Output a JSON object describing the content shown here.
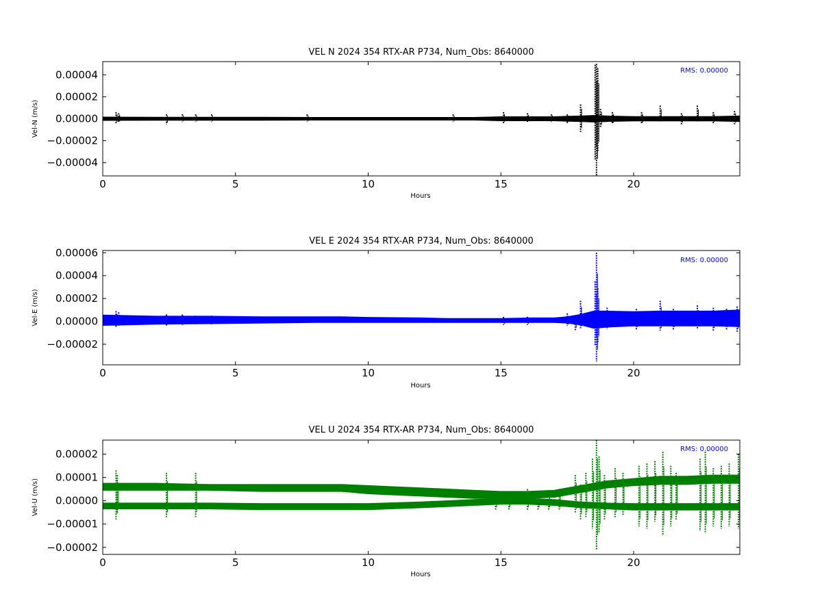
{
  "chart_data": [
    {
      "type": "line",
      "title": "VEL N 2024 354 RTX-AR  P734, Num_Obs: 8640000",
      "xlabel": "Hours",
      "ylabel": "Vel-N (m/s)",
      "xlim": [
        0,
        24
      ],
      "ylim": [
        -5.2e-05,
        5.2e-05
      ],
      "xticks": [
        0,
        5,
        10,
        15,
        20
      ],
      "xtick_labels": [
        "0",
        "5",
        "10",
        "15",
        "20"
      ],
      "yticks": [
        -4e-05,
        -2e-05,
        0,
        2e-05,
        4e-05
      ],
      "ytick_labels": [
        "−0.00004",
        "−0.00002",
        "0.00000",
        "0.00002",
        "0.00004"
      ],
      "rms_label": "RMS:  0.00000",
      "grid": false,
      "series": [
        {
          "color": "#000000",
          "band": {
            "x": [
              0,
              2,
              4,
              6,
              8,
              10,
              12,
              14,
              15,
              16,
              17,
              17.5,
              18,
              18.5,
              19,
              20,
              21,
              22,
              23,
              24
            ],
            "upper": [
              1.5e-06,
              1.4e-06,
              1.3e-06,
              1.3e-06,
              1.2e-06,
              1.2e-06,
              1.2e-06,
              1.2e-06,
              1.8e-06,
              1.8e-06,
              1.8e-06,
              2.2e-06,
              2.5e-06,
              3e-06,
              2.5e-06,
              2e-06,
              2e-06,
              2e-06,
              2e-06,
              2.5e-06
            ],
            "lower": [
              -1.5e-06,
              -1.4e-06,
              -1.3e-06,
              -1.3e-06,
              -1.2e-06,
              -1.2e-06,
              -1.2e-06,
              -1.2e-06,
              -1.8e-06,
              -1.8e-06,
              -1.8e-06,
              -2.2e-06,
              -2.5e-06,
              -3e-06,
              -2.5e-06,
              -2e-06,
              -2e-06,
              -2e-06,
              -2e-06,
              -2.5e-06
            ]
          },
          "spikes": [
            {
              "x": 0.5,
              "high": 6e-06,
              "low": -4e-06
            },
            {
              "x": 0.6,
              "high": 5e-06,
              "low": -3e-06
            },
            {
              "x": 2.4,
              "high": 4e-06,
              "low": -5e-06
            },
            {
              "x": 3.0,
              "high": 4e-06,
              "low": -3e-06
            },
            {
              "x": 3.5,
              "high": 4e-06,
              "low": -3e-06
            },
            {
              "x": 4.1,
              "high": 4e-06,
              "low": -3e-06
            },
            {
              "x": 7.7,
              "high": 4e-06,
              "low": -3e-06
            },
            {
              "x": 13.2,
              "high": 4e-06,
              "low": -3e-06
            },
            {
              "x": 15.1,
              "high": 6e-06,
              "low": -4e-06
            },
            {
              "x": 16.0,
              "high": 5e-06,
              "low": -3e-06
            },
            {
              "x": 16.9,
              "high": 4e-06,
              "low": -3e-06
            },
            {
              "x": 17.5,
              "high": 4e-06,
              "low": -4e-06
            },
            {
              "x": 18.0,
              "high": 1.3e-05,
              "low": -1.2e-05
            },
            {
              "x": 18.55,
              "high": 4.9e-05,
              "low": -3.7e-05
            },
            {
              "x": 18.6,
              "high": 5e-05,
              "low": -5.2e-05
            },
            {
              "x": 18.65,
              "high": 4.6e-05,
              "low": -3e-05
            },
            {
              "x": 18.75,
              "high": 9e-06,
              "low": -8e-06
            },
            {
              "x": 19.2,
              "high": 6e-06,
              "low": -5e-06
            },
            {
              "x": 20.3,
              "high": 6e-06,
              "low": -5e-06
            },
            {
              "x": 21.0,
              "high": 1.2e-05,
              "low": -3e-06
            },
            {
              "x": 21.8,
              "high": 5e-06,
              "low": -5e-06
            },
            {
              "x": 22.4,
              "high": 1.2e-05,
              "low": -3e-06
            },
            {
              "x": 23.0,
              "high": 6e-06,
              "low": -4e-06
            },
            {
              "x": 23.8,
              "high": 7e-06,
              "low": -5e-06
            }
          ]
        }
      ]
    },
    {
      "type": "line",
      "title": "VEL E 2024 354 RTX-AR  P734, Num_Obs: 8640000",
      "xlabel": "Hours",
      "ylabel": "Vel-E (m/s)",
      "xlim": [
        0,
        24
      ],
      "ylim": [
        -3.8e-05,
        6.2e-05
      ],
      "xticks": [
        0,
        5,
        10,
        15,
        20
      ],
      "xtick_labels": [
        "0",
        "5",
        "10",
        "15",
        "20"
      ],
      "yticks": [
        -2e-05,
        0,
        2e-05,
        4e-05,
        6e-05
      ],
      "ytick_labels": [
        "−0.00002",
        "0.00000",
        "0.00002",
        "0.00004",
        "0.00006"
      ],
      "rms_label": "RMS:  0.00000",
      "grid": false,
      "series": [
        {
          "color": "#0000ff",
          "band": {
            "x": [
              0,
              2,
              4,
              6,
              8,
              9,
              10,
              12,
              13,
              14,
              15,
              16,
              17,
              17.5,
              18,
              18.5,
              19,
              20,
              21,
              22,
              23,
              24
            ],
            "upper": [
              5.5e-06,
              4.5e-06,
              4.5e-06,
              4e-06,
              4e-06,
              4e-06,
              3.5e-06,
              3e-06,
              2.5e-06,
              2.5e-06,
              2.5e-06,
              3e-06,
              3e-06,
              4e-06,
              6e-06,
              9e-06,
              9e-06,
              8.5e-06,
              9e-06,
              9e-06,
              9e-06,
              1e-05
            ],
            "lower": [
              -3.5e-06,
              -2.5e-06,
              -2e-06,
              -1.5e-06,
              -1e-06,
              -1e-06,
              -1e-06,
              -1e-06,
              -1e-06,
              -1e-06,
              -1e-06,
              -1e-06,
              -1e-06,
              -1.5e-06,
              -3e-06,
              -6e-06,
              -5e-06,
              -4e-06,
              -4e-06,
              -4e-06,
              -4e-06,
              -4.5e-06
            ]
          },
          "spikes": [
            {
              "x": 0.5,
              "high": 9e-06,
              "low": -5e-06
            },
            {
              "x": 0.6,
              "high": 8e-06,
              "low": -4e-06
            },
            {
              "x": 2.4,
              "high": 6e-06,
              "low": -4e-06
            },
            {
              "x": 3.0,
              "high": 6e-06,
              "low": -3e-06
            },
            {
              "x": 3.5,
              "high": 5e-06,
              "low": -3e-06
            },
            {
              "x": 4.1,
              "high": 5e-06,
              "low": -3e-06
            },
            {
              "x": 15.1,
              "high": 4e-06,
              "low": -3e-06
            },
            {
              "x": 16.0,
              "high": 4e-06,
              "low": -3e-06
            },
            {
              "x": 17.5,
              "high": 7e-06,
              "low": -4e-06
            },
            {
              "x": 17.8,
              "high": 4e-06,
              "low": -8e-06
            },
            {
              "x": 18.0,
              "high": 1.8e-05,
              "low": -6e-06
            },
            {
              "x": 18.55,
              "high": 3.5e-05,
              "low": -2.1e-05
            },
            {
              "x": 18.6,
              "high": 6e-05,
              "low": -3.5e-05
            },
            {
              "x": 18.65,
              "high": 2.9e-05,
              "low": -1.8e-05
            },
            {
              "x": 19.0,
              "high": 1.2e-05,
              "low": -7e-06
            },
            {
              "x": 20.1,
              "high": 1.1e-05,
              "low": -7e-06
            },
            {
              "x": 21.0,
              "high": 1.8e-05,
              "low": -8e-06
            },
            {
              "x": 21.5,
              "high": 1.1e-05,
              "low": -7e-06
            },
            {
              "x": 22.4,
              "high": 1.4e-05,
              "low": -6e-06
            },
            {
              "x": 23.0,
              "high": 1.2e-05,
              "low": -8e-06
            },
            {
              "x": 23.5,
              "high": 1.1e-05,
              "low": -7e-06
            },
            {
              "x": 23.9,
              "high": 1.3e-05,
              "low": -9e-06
            }
          ]
        }
      ]
    },
    {
      "type": "line",
      "title": "VEL U 2024 354 RTX-AR  P734, Num_Obs: 8640000",
      "xlabel": "Hours",
      "ylabel": "Vel-U (m/s)",
      "xlim": [
        0,
        24
      ],
      "ylim": [
        -2.3e-05,
        2.6e-05
      ],
      "xticks": [
        0,
        5,
        10,
        15,
        20
      ],
      "xtick_labels": [
        "0",
        "5",
        "10",
        "15",
        "20"
      ],
      "yticks": [
        -2e-05,
        -1e-05,
        0,
        1e-05,
        2e-05
      ],
      "ytick_labels": [
        "−0.00002",
        "−0.00001",
        "0.00000",
        "0.00001",
        "0.00002"
      ],
      "rms_label": "RMS:  0.00000",
      "grid": false,
      "series": [
        {
          "color": "#008000",
          "bands": [
            {
              "x": [
                0,
                2,
                4,
                6,
                8,
                9,
                10,
                11,
                12,
                13,
                14,
                15,
                16,
                17,
                17.5,
                18,
                19,
                20,
                21,
                22,
                23,
                24
              ],
              "upper": [
                7.5e-06,
                7.5e-06,
                7e-06,
                7e-06,
                7e-06,
                7e-06,
                6.5e-06,
                6e-06,
                5.5e-06,
                5e-06,
                4.5e-06,
                4e-06,
                4e-06,
                4.5e-06,
                5.5e-06,
                6.5e-06,
                8.5e-06,
                9.5e-06,
                1.05e-05,
                1.05e-05,
                1.1e-05,
                1.1e-05
              ],
              "lower": [
                4.5e-06,
                4.5e-06,
                4.5e-06,
                4e-06,
                4e-06,
                4e-06,
                3e-06,
                2.5e-06,
                2e-06,
                1.5e-06,
                1e-06,
                1e-06,
                1e-06,
                1.5e-06,
                2.5e-06,
                3.5e-06,
                5.5e-06,
                6.5e-06,
                7e-06,
                7e-06,
                7.5e-06,
                7.5e-06
              ]
            },
            {
              "x": [
                0,
                2,
                4,
                6,
                8,
                10,
                12,
                13,
                14,
                15,
                16,
                17,
                18,
                19,
                20,
                21,
                22,
                23,
                24
              ],
              "upper": [
                -1e-06,
                -1e-06,
                -1e-06,
                -1.2e-06,
                -1.2e-06,
                -1.2e-06,
                -5e-07,
                0,
                5e-07,
                1e-06,
                1e-06,
                5e-07,
                -5e-07,
                -1e-06,
                -1.2e-06,
                -1.2e-06,
                -1.2e-06,
                -1.2e-06,
                -1.2e-06
              ],
              "lower": [
                -3.5e-06,
                -3.5e-06,
                -3.5e-06,
                -3.8e-06,
                -3.8e-06,
                -3.8e-06,
                -3e-06,
                -2.5e-06,
                -2e-06,
                -1.5e-06,
                -1.5e-06,
                -2e-06,
                -3e-06,
                -3.5e-06,
                -4e-06,
                -4e-06,
                -4e-06,
                -4e-06,
                -4e-06
              ]
            }
          ],
          "spikes": [
            {
              "x": 0.5,
              "high": 1.3e-05,
              "low": -8e-06
            },
            {
              "x": 0.55,
              "high": 1.1e-05,
              "low": -5e-06
            },
            {
              "x": 2.4,
              "high": 1.2e-05,
              "low": -7e-06
            },
            {
              "x": 3.5,
              "high": 1.2e-05,
              "low": -7e-06
            },
            {
              "x": 14.8,
              "high": 4e-06,
              "low": -4e-06
            },
            {
              "x": 15.3,
              "high": 4e-06,
              "low": -4e-06
            },
            {
              "x": 16.0,
              "high": 5e-06,
              "low": -4e-06
            },
            {
              "x": 16.4,
              "high": 4e-06,
              "low": -4e-06
            },
            {
              "x": 16.8,
              "high": 4e-06,
              "low": -4e-06
            },
            {
              "x": 17.2,
              "high": 4e-06,
              "low": -4e-06
            },
            {
              "x": 17.8,
              "high": 1.1e-05,
              "low": -5e-06
            },
            {
              "x": 18.0,
              "high": 7e-06,
              "low": -8e-06
            },
            {
              "x": 18.2,
              "high": 1.2e-05,
              "low": -7e-06
            },
            {
              "x": 18.45,
              "high": 1.8e-05,
              "low": -1.2e-05
            },
            {
              "x": 18.6,
              "high": 2.6e-05,
              "low": -2.1e-05
            },
            {
              "x": 18.7,
              "high": 1.9e-05,
              "low": -1.4e-05
            },
            {
              "x": 18.9,
              "high": 1.1e-05,
              "low": -8e-06
            },
            {
              "x": 19.3,
              "high": 1.4e-05,
              "low": -7e-06
            },
            {
              "x": 19.6,
              "high": 1.2e-05,
              "low": -6e-06
            },
            {
              "x": 20.2,
              "high": 1.5e-05,
              "low": -1.1e-05
            },
            {
              "x": 20.5,
              "high": 1.6e-05,
              "low": -1.2e-05
            },
            {
              "x": 20.8,
              "high": 1.7e-05,
              "low": -9e-06
            },
            {
              "x": 21.1,
              "high": 2.1e-05,
              "low": -1.5e-05
            },
            {
              "x": 21.4,
              "high": 1.5e-05,
              "low": -1.1e-05
            },
            {
              "x": 21.6,
              "high": 1.2e-05,
              "low": -8e-06
            },
            {
              "x": 22.5,
              "high": 1.8e-05,
              "low": -1.3e-05
            },
            {
              "x": 22.7,
              "high": 2.1e-05,
              "low": -1.4e-05
            },
            {
              "x": 23.0,
              "high": 1.4e-05,
              "low": -1.1e-05
            },
            {
              "x": 23.3,
              "high": 1.5e-05,
              "low": -1.2e-05
            },
            {
              "x": 23.6,
              "high": 1.6e-05,
              "low": -1.1e-05
            },
            {
              "x": 23.95,
              "high": 2e-05,
              "low": -1.2e-05
            }
          ]
        }
      ]
    }
  ]
}
